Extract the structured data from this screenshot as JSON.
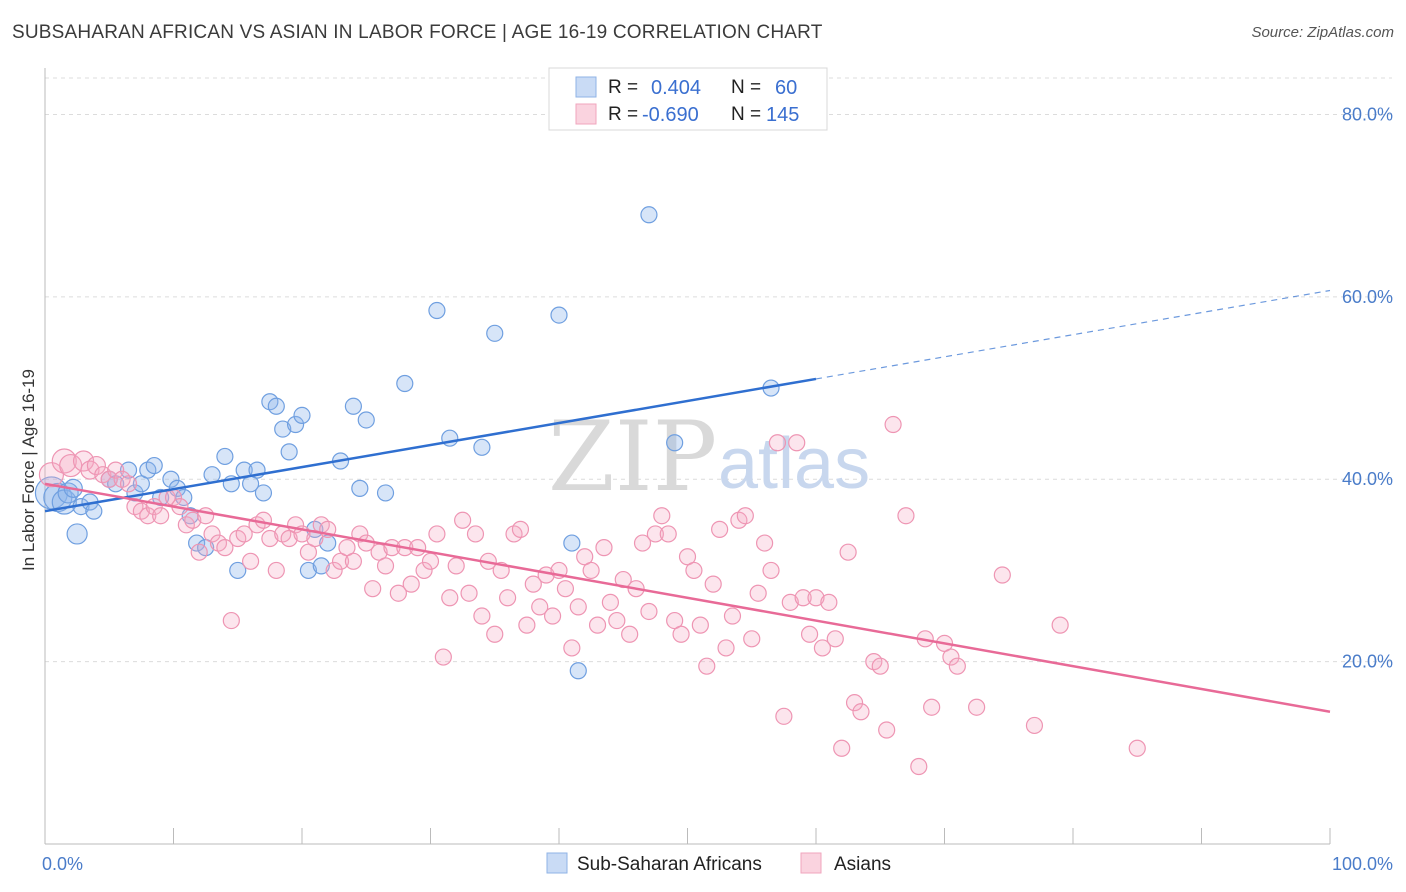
{
  "title": "SUBSAHARAN AFRICAN VS ASIAN IN LABOR FORCE | AGE 16-19 CORRELATION CHART",
  "source": "Source: ZipAtlas.com",
  "watermark": {
    "zip": "ZIP",
    "atlas": "atlas"
  },
  "legend_top": [
    {
      "r_label": "R =",
      "r_value": "0.404",
      "n_label": "N =",
      "n_value": "60",
      "color": "#a8c4ec"
    },
    {
      "r_label": "R =",
      "r_value": "-0.690",
      "n_label": "N =",
      "n_value": "145",
      "color": "#f5b8cb"
    }
  ],
  "legend_bottom": [
    {
      "label": "Sub-Saharan Africans",
      "color": "#a8c4ec"
    },
    {
      "label": "Asians",
      "color": "#f5b8cb"
    }
  ],
  "colors": {
    "blue_fill": "rgba(140,180,235,0.35)",
    "blue_stroke": "#6f9fe0",
    "blue_line": "#2f6fd0",
    "pink_fill": "rgba(245,170,195,0.3)",
    "pink_stroke": "#ee95b3",
    "pink_line": "#e86a97",
    "grid": "#dcdcdc",
    "tick_text": "#4a7cc9"
  },
  "chart_data": {
    "type": "scatter",
    "title": "SUBSAHARAN AFRICAN VS ASIAN IN LABOR FORCE | AGE 16-19 CORRELATION CHART",
    "xlabel": "",
    "ylabel": "In Labor Force | Age 16-19",
    "xlim": [
      0,
      100
    ],
    "ylim": [
      0,
      84
    ],
    "x_tick_labels": [
      "0.0%",
      "100.0%"
    ],
    "y_ticks": [
      20,
      40,
      60,
      80
    ],
    "y_tick_labels": [
      "20.0%",
      "40.0%",
      "60.0%",
      "80.0%"
    ],
    "grid": true,
    "legend_position": "top-center",
    "series": [
      {
        "name": "Sub-Saharan Africans",
        "trend": {
          "x0": 0,
          "y0": 36.5,
          "x1": 60,
          "y1": 51.0,
          "dashed_to_x": 100,
          "dashed_to_y": 60.7
        },
        "points": [
          [
            0.5,
            38.5,
            16
          ],
          [
            1.0,
            38.0,
            14
          ],
          [
            1.5,
            37.5,
            12
          ],
          [
            1.8,
            38.5,
            10
          ],
          [
            2.2,
            39.0,
            9
          ],
          [
            2.5,
            34.0,
            10
          ],
          [
            2.8,
            37.0,
            8
          ],
          [
            3.5,
            37.5,
            8
          ],
          [
            3.8,
            36.5,
            8
          ],
          [
            5.0,
            40.0,
            8
          ],
          [
            5.5,
            39.5,
            8
          ],
          [
            6.5,
            41.0,
            8
          ],
          [
            7.0,
            38.5,
            8
          ],
          [
            7.5,
            39.5,
            8
          ],
          [
            8.0,
            41.0,
            8
          ],
          [
            8.5,
            41.5,
            8
          ],
          [
            9.0,
            38.0,
            8
          ],
          [
            9.8,
            40.0,
            8
          ],
          [
            10.3,
            39.0,
            8
          ],
          [
            10.8,
            38.0,
            8
          ],
          [
            11.3,
            36.0,
            8
          ],
          [
            11.8,
            33.0,
            8
          ],
          [
            12.5,
            32.5,
            8
          ],
          [
            13.0,
            40.5,
            8
          ],
          [
            14.0,
            42.5,
            8
          ],
          [
            14.5,
            39.5,
            8
          ],
          [
            15.0,
            30.0,
            8
          ],
          [
            15.5,
            41.0,
            8
          ],
          [
            16.0,
            39.5,
            8
          ],
          [
            16.5,
            41.0,
            8
          ],
          [
            17.0,
            38.5,
            8
          ],
          [
            17.5,
            48.5,
            8
          ],
          [
            18.0,
            48.0,
            8
          ],
          [
            18.5,
            45.5,
            8
          ],
          [
            19.0,
            43.0,
            8
          ],
          [
            19.5,
            46.0,
            8
          ],
          [
            20.0,
            47.0,
            8
          ],
          [
            20.5,
            30.0,
            8
          ],
          [
            21.0,
            34.5,
            8
          ],
          [
            21.5,
            30.5,
            8
          ],
          [
            22.0,
            33.0,
            8
          ],
          [
            23.0,
            42.0,
            8
          ],
          [
            24.0,
            48.0,
            8
          ],
          [
            24.5,
            39.0,
            8
          ],
          [
            25.0,
            46.5,
            8
          ],
          [
            26.5,
            38.5,
            8
          ],
          [
            28.0,
            50.5,
            8
          ],
          [
            30.5,
            58.5,
            8
          ],
          [
            31.5,
            44.5,
            8
          ],
          [
            34.0,
            43.5,
            8
          ],
          [
            35.0,
            56.0,
            8
          ],
          [
            40.0,
            58.0,
            8
          ],
          [
            41.0,
            33.0,
            8
          ],
          [
            41.5,
            19.0,
            8
          ],
          [
            47.0,
            69.0,
            8
          ],
          [
            49.0,
            44.0,
            8
          ],
          [
            56.5,
            50.0,
            8
          ]
        ]
      },
      {
        "name": "Asians",
        "trend": {
          "x0": 0,
          "y0": 39.5,
          "x1": 100,
          "y1": 14.5
        },
        "points": [
          [
            0.5,
            40.5,
            12
          ],
          [
            1.5,
            42.0,
            12
          ],
          [
            2.0,
            41.5,
            11
          ],
          [
            3.0,
            42.0,
            10
          ],
          [
            3.5,
            41.0,
            9
          ],
          [
            4.0,
            41.5,
            9
          ],
          [
            4.5,
            40.5,
            8
          ],
          [
            5.0,
            40.0,
            8
          ],
          [
            5.5,
            41.0,
            8
          ],
          [
            6.0,
            40.0,
            8
          ],
          [
            6.5,
            39.5,
            8
          ],
          [
            7.0,
            37.0,
            8
          ],
          [
            7.5,
            36.5,
            8
          ],
          [
            8.0,
            36.0,
            8
          ],
          [
            8.5,
            37.0,
            8
          ],
          [
            9.0,
            36.0,
            8
          ],
          [
            9.5,
            38.0,
            8
          ],
          [
            10.0,
            38.0,
            8
          ],
          [
            10.5,
            37.0,
            8
          ],
          [
            11.0,
            35.0,
            8
          ],
          [
            11.5,
            35.5,
            8
          ],
          [
            12.0,
            32.0,
            8
          ],
          [
            12.5,
            36.0,
            8
          ],
          [
            13.0,
            34.0,
            8
          ],
          [
            13.5,
            33.0,
            8
          ],
          [
            14.0,
            32.5,
            8
          ],
          [
            14.5,
            24.5,
            8
          ],
          [
            15.0,
            33.5,
            8
          ],
          [
            15.5,
            34.0,
            8
          ],
          [
            16.0,
            31.0,
            8
          ],
          [
            16.5,
            35.0,
            8
          ],
          [
            17.0,
            35.5,
            8
          ],
          [
            17.5,
            33.5,
            8
          ],
          [
            18.0,
            30.0,
            8
          ],
          [
            18.5,
            34.0,
            8
          ],
          [
            19.0,
            33.5,
            8
          ],
          [
            19.5,
            35.0,
            8
          ],
          [
            20.0,
            34.0,
            8
          ],
          [
            20.5,
            32.0,
            8
          ],
          [
            21.0,
            33.5,
            8
          ],
          [
            21.5,
            35.0,
            8
          ],
          [
            22.0,
            34.5,
            8
          ],
          [
            22.5,
            30.0,
            8
          ],
          [
            23.0,
            31.0,
            8
          ],
          [
            23.5,
            32.5,
            8
          ],
          [
            24.0,
            31.0,
            8
          ],
          [
            24.5,
            34.0,
            8
          ],
          [
            25.0,
            33.0,
            8
          ],
          [
            25.5,
            28.0,
            8
          ],
          [
            26.0,
            32.0,
            8
          ],
          [
            26.5,
            30.5,
            8
          ],
          [
            27.0,
            32.5,
            8
          ],
          [
            27.5,
            27.5,
            8
          ],
          [
            28.0,
            32.5,
            8
          ],
          [
            28.5,
            28.5,
            8
          ],
          [
            29.0,
            32.5,
            8
          ],
          [
            29.5,
            30.0,
            8
          ],
          [
            30.0,
            31.0,
            8
          ],
          [
            30.5,
            34.0,
            8
          ],
          [
            31.0,
            20.5,
            8
          ],
          [
            31.5,
            27.0,
            8
          ],
          [
            32.0,
            30.5,
            8
          ],
          [
            32.5,
            35.5,
            8
          ],
          [
            33.0,
            27.5,
            8
          ],
          [
            33.5,
            34.0,
            8
          ],
          [
            34.0,
            25.0,
            8
          ],
          [
            34.5,
            31.0,
            8
          ],
          [
            35.0,
            23.0,
            8
          ],
          [
            35.5,
            30.0,
            8
          ],
          [
            36.0,
            27.0,
            8
          ],
          [
            36.5,
            34.0,
            8
          ],
          [
            37.0,
            34.5,
            8
          ],
          [
            37.5,
            24.0,
            8
          ],
          [
            38.0,
            28.5,
            8
          ],
          [
            38.5,
            26.0,
            8
          ],
          [
            39.0,
            29.5,
            8
          ],
          [
            39.5,
            25.0,
            8
          ],
          [
            40.0,
            30.0,
            8
          ],
          [
            40.5,
            28.0,
            8
          ],
          [
            41.0,
            21.5,
            8
          ],
          [
            41.5,
            26.0,
            8
          ],
          [
            42.0,
            31.5,
            8
          ],
          [
            42.5,
            30.0,
            8
          ],
          [
            43.0,
            24.0,
            8
          ],
          [
            43.5,
            32.5,
            8
          ],
          [
            44.0,
            26.5,
            8
          ],
          [
            44.5,
            24.5,
            8
          ],
          [
            45.0,
            29.0,
            8
          ],
          [
            45.5,
            23.0,
            8
          ],
          [
            46.0,
            28.0,
            8
          ],
          [
            46.5,
            33.0,
            8
          ],
          [
            47.0,
            25.5,
            8
          ],
          [
            47.5,
            34.0,
            8
          ],
          [
            48.0,
            36.0,
            8
          ],
          [
            48.5,
            34.0,
            8
          ],
          [
            49.0,
            24.5,
            8
          ],
          [
            49.5,
            23.0,
            8
          ],
          [
            50.0,
            31.5,
            8
          ],
          [
            50.5,
            30.0,
            8
          ],
          [
            51.0,
            24.0,
            8
          ],
          [
            51.5,
            19.5,
            8
          ],
          [
            52.0,
            28.5,
            8
          ],
          [
            52.5,
            34.5,
            8
          ],
          [
            53.0,
            21.5,
            8
          ],
          [
            53.5,
            25.0,
            8
          ],
          [
            54.0,
            35.5,
            8
          ],
          [
            54.5,
            36.0,
            8
          ],
          [
            55.0,
            22.5,
            8
          ],
          [
            55.5,
            27.5,
            8
          ],
          [
            56.0,
            33.0,
            8
          ],
          [
            56.5,
            30.0,
            8
          ],
          [
            57.0,
            44.0,
            8
          ],
          [
            57.5,
            14.0,
            8
          ],
          [
            58.0,
            26.5,
            8
          ],
          [
            58.5,
            44.0,
            8
          ],
          [
            59.0,
            27.0,
            8
          ],
          [
            59.5,
            23.0,
            8
          ],
          [
            60.0,
            27.0,
            8
          ],
          [
            60.5,
            21.5,
            8
          ],
          [
            61.0,
            26.5,
            8
          ],
          [
            61.5,
            22.5,
            8
          ],
          [
            62.0,
            10.5,
            8
          ],
          [
            62.5,
            32.0,
            8
          ],
          [
            63.0,
            15.5,
            8
          ],
          [
            63.5,
            14.5,
            8
          ],
          [
            64.5,
            20.0,
            8
          ],
          [
            65.0,
            19.5,
            8
          ],
          [
            65.5,
            12.5,
            8
          ],
          [
            66.0,
            46.0,
            8
          ],
          [
            67.0,
            36.0,
            8
          ],
          [
            68.0,
            8.5,
            8
          ],
          [
            68.5,
            22.5,
            8
          ],
          [
            69.0,
            15.0,
            8
          ],
          [
            70.0,
            22.0,
            8
          ],
          [
            70.5,
            20.5,
            8
          ],
          [
            71.0,
            19.5,
            8
          ],
          [
            72.5,
            15.0,
            8
          ],
          [
            74.5,
            29.5,
            8
          ],
          [
            77.0,
            13.0,
            8
          ],
          [
            79.0,
            24.0,
            8
          ],
          [
            85.0,
            10.5,
            8
          ]
        ]
      }
    ]
  }
}
